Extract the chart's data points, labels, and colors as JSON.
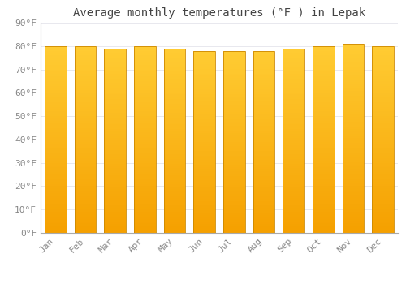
{
  "months": [
    "Jan",
    "Feb",
    "Mar",
    "Apr",
    "May",
    "Jun",
    "Jul",
    "Aug",
    "Sep",
    "Oct",
    "Nov",
    "Dec"
  ],
  "values": [
    80,
    80,
    79,
    80,
    79,
    78,
    78,
    78,
    79,
    80,
    81,
    80
  ],
  "title": "Average monthly temperatures (°F ) in Lepak",
  "ylim": [
    0,
    90
  ],
  "ytick_step": 10,
  "bar_color_top": "#FFCC33",
  "bar_color_bottom": "#F5A000",
  "bar_edge_color": "#CC8800",
  "background_color": "#FFFFFF",
  "grid_color": "#E8E8EE",
  "title_fontsize": 10,
  "tick_fontsize": 8,
  "font_color": "#888888",
  "bar_width": 0.72
}
